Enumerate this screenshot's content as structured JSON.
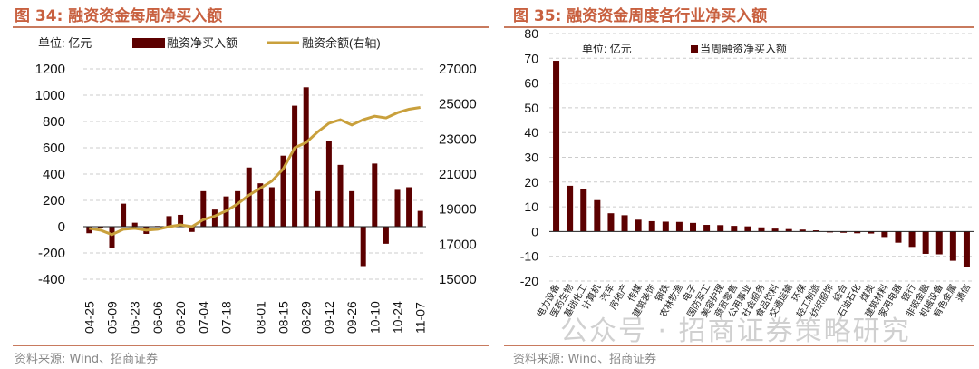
{
  "left": {
    "title": "图 34:  融资资金每周净买入额",
    "source": "资料来源: Wind、招商证券"
  },
  "right": {
    "title": "图 35:  融资资金周度各行业净买入额",
    "source": "资料来源: Wind、招商证券"
  },
  "watermark": "公众号 · 招商证券策略研究",
  "chart_data": [
    {
      "type": "bar",
      "title": "融资资金每周净买入额",
      "unit_label": "单位: 亿元",
      "legend": [
        {
          "name": "融资净买入额",
          "kind": "bar",
          "color": "#5c0000"
        },
        {
          "name": "融资余额(右轴)",
          "kind": "line",
          "color": "#c9a03c"
        }
      ],
      "x_tick_labels": [
        "04-25",
        "05-09",
        "05-23",
        "06-06",
        "06-20",
        "07-04",
        "07-18",
        "08-01",
        "08-15",
        "08-29",
        "09-12",
        "09-26",
        "10-10",
        "10-24",
        "11-07"
      ],
      "series": [
        {
          "name": "融资净买入额",
          "axis": "left",
          "values": [
            -50,
            -10,
            -160,
            175,
            30,
            -55,
            5,
            80,
            90,
            -40,
            270,
            130,
            230,
            270,
            450,
            330,
            300,
            540,
            920,
            1060,
            270,
            650,
            470,
            270,
            -300,
            480,
            -130,
            280,
            300,
            120
          ]
        },
        {
          "name": "融资余额(右轴)",
          "axis": "right",
          "values": [
            17900,
            17800,
            17550,
            17850,
            17900,
            17800,
            17850,
            18000,
            18100,
            18000,
            18400,
            18600,
            18900,
            19300,
            19800,
            20200,
            20600,
            21300,
            22500,
            22800,
            23400,
            23900,
            24100,
            23800,
            24100,
            24300,
            24200,
            24500,
            24700,
            24800
          ]
        }
      ],
      "yleft": {
        "lim": [
          -400,
          1200
        ],
        "ticks": [
          -400,
          -200,
          0,
          200,
          400,
          600,
          800,
          1000,
          1200
        ]
      },
      "yright": {
        "lim": [
          15000,
          27000
        ],
        "ticks": [
          15000,
          17000,
          19000,
          21000,
          23000,
          25000,
          27000
        ]
      },
      "grid": true
    },
    {
      "type": "bar",
      "title": "融资资金周度各行业净买入额",
      "unit_label": "单位: 亿元",
      "legend": [
        {
          "name": "当周融资净买入额",
          "kind": "bar",
          "color": "#5c0000"
        }
      ],
      "categories": [
        "电力设备",
        "医药生物",
        "基础化工",
        "计算机",
        "汽车",
        "房地产",
        "传媒",
        "建筑装饰",
        "钢铁",
        "农林牧渔",
        "电子",
        "国防军工",
        "美容护理",
        "商贸零售",
        "公用事业",
        "社会服务",
        "食品饮料",
        "交通运输",
        "环保",
        "轻工制造",
        "纺织服饰",
        "综合",
        "石油石化",
        "煤炭",
        "建筑材料",
        "家用电器",
        "银行",
        "非银金融",
        "机械设备",
        "有色金属",
        "通信"
      ],
      "values": [
        69,
        18.5,
        17,
        12.7,
        7.4,
        6.6,
        4.8,
        4.2,
        4.0,
        3.9,
        3.5,
        2.7,
        2.6,
        2.3,
        2.1,
        1.7,
        1.2,
        1.0,
        0.8,
        0.5,
        -0.3,
        -0.5,
        -0.7,
        -0.8,
        -2.2,
        -4.5,
        -6.2,
        -9.0,
        -9.2,
        -11.8,
        -14.5
      ],
      "ylim": [
        -20,
        80
      ],
      "yticks": [
        -20,
        -10,
        0,
        10,
        20,
        30,
        40,
        50,
        60,
        70,
        80
      ],
      "grid": true
    }
  ]
}
